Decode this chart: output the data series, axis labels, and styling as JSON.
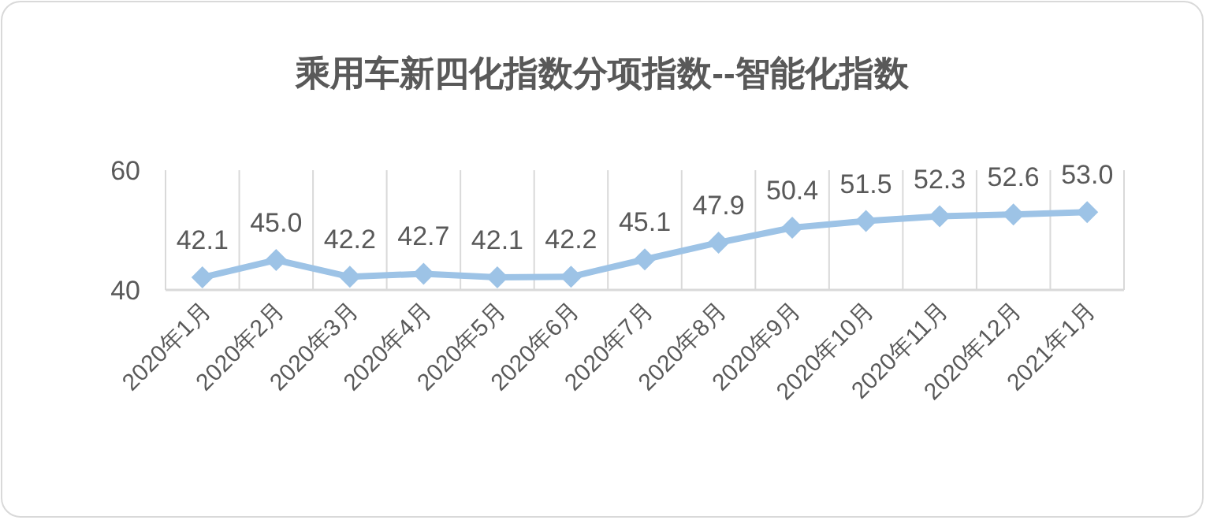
{
  "chart_data": {
    "type": "line",
    "title": "乘用车新四化指数分项指数--智能化指数",
    "categories": [
      "2020年1月",
      "2020年2月",
      "2020年3月",
      "2020年4月",
      "2020年5月",
      "2020年6月",
      "2020年7月",
      "2020年8月",
      "2020年9月",
      "2020年10月",
      "2020年11月",
      "2020年12月",
      "2021年1月"
    ],
    "series": [
      {
        "color": "#9dc3e6",
        "values": [
          42.1,
          45.0,
          42.2,
          42.7,
          42.1,
          42.2,
          45.1,
          47.9,
          50.4,
          51.5,
          52.3,
          52.6,
          53.0
        ]
      }
    ],
    "value_labels": [
      "42.1",
      "45.0",
      "42.2",
      "42.7",
      "42.1",
      "42.2",
      "45.1",
      "47.9",
      "50.4",
      "51.5",
      "52.3",
      "52.6",
      "53.0"
    ],
    "ylim": [
      40,
      60
    ],
    "yticks": [
      40,
      60
    ],
    "grid": "x",
    "marker": "diamond",
    "line_style": "solid"
  }
}
